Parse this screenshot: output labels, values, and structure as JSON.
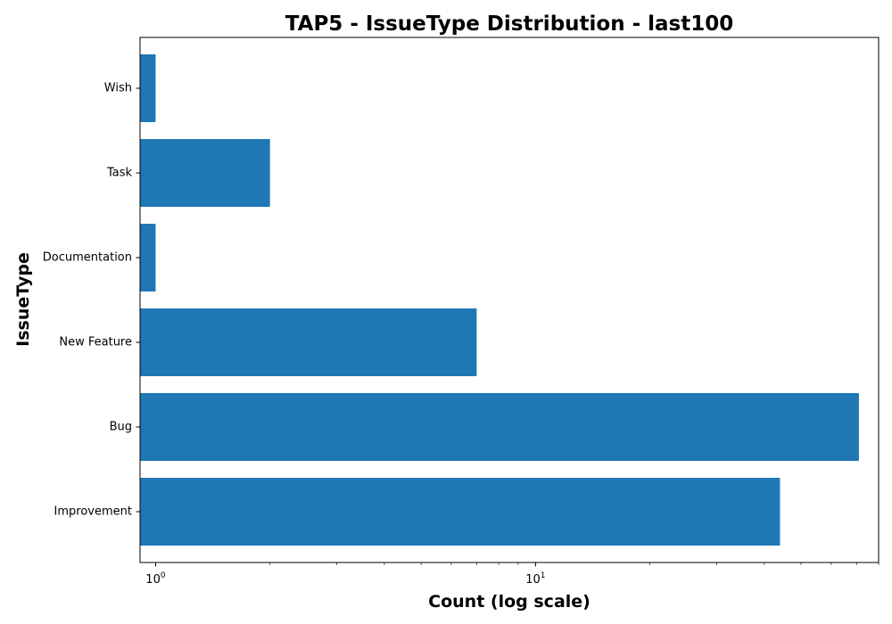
{
  "chart_data": {
    "type": "bar",
    "orientation": "horizontal",
    "title": "TAP5 - IssueType Distribution - last100",
    "xlabel": "Count (log scale)",
    "ylabel": "IssueType",
    "x_scale": "log",
    "xlim": [
      0.91,
      80
    ],
    "x_ticks": [
      {
        "base": "10",
        "exponent": "0",
        "value": 1
      },
      {
        "base": "10",
        "exponent": "1",
        "value": 10
      }
    ],
    "categories": [
      "Improvement",
      "Bug",
      "New Feature",
      "Documentation",
      "Task",
      "Wish"
    ],
    "values": [
      44,
      71,
      7,
      1,
      2,
      1
    ],
    "bar_color": "#1f77b4",
    "grid": false,
    "legend": false
  }
}
